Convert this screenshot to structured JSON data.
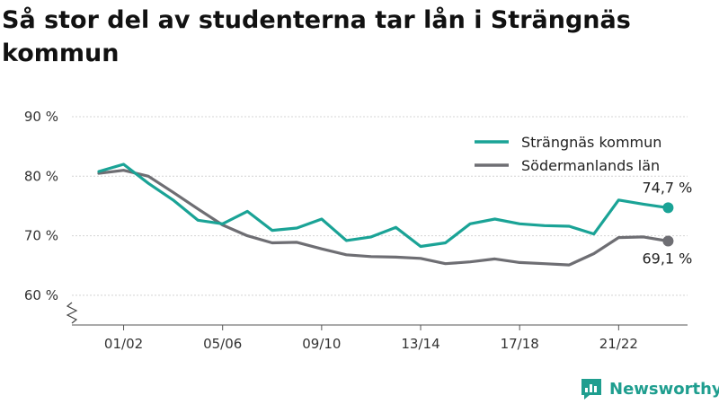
{
  "title": "Så stor del av studenterna tar lån i Strängnäs kommun",
  "brand": {
    "name": "Newsworthy",
    "icon": "newsworthy-logo-icon",
    "color": "#1f9e8f"
  },
  "chart_data": {
    "type": "line",
    "title": "Så stor del av studenterna tar lån i Strängnäs kommun",
    "x": [
      "00/01",
      "01/02",
      "02/03",
      "03/04",
      "04/05",
      "05/06",
      "06/07",
      "07/08",
      "08/09",
      "09/10",
      "10/11",
      "11/12",
      "12/13",
      "13/14",
      "14/15",
      "15/16",
      "16/17",
      "17/18",
      "18/19",
      "19/20",
      "20/21",
      "21/22",
      "22/23",
      "23/24"
    ],
    "x_tick_labels": [
      "01/02",
      "05/06",
      "09/10",
      "13/14",
      "17/18",
      "21/22"
    ],
    "ylim": [
      55,
      90
    ],
    "y_ticks": [
      {
        "value": 60,
        "label": "60 %"
      },
      {
        "value": 70,
        "label": "70 %"
      },
      {
        "value": 80,
        "label": "80 %"
      },
      {
        "value": 90,
        "label": "90 %"
      }
    ],
    "axis_break": true,
    "grid": true,
    "legend_position": "top-right",
    "series": [
      {
        "name": "Strängnäs kommun",
        "color": "#1aa396",
        "values": [
          80.8,
          82.0,
          78.8,
          76.0,
          72.6,
          72.0,
          74.1,
          70.9,
          71.3,
          72.8,
          69.2,
          69.8,
          71.4,
          68.2,
          68.8,
          72.0,
          72.8,
          72.0,
          71.7,
          71.6,
          70.3,
          76.0,
          75.3,
          74.7
        ],
        "end_label": "74,7 %"
      },
      {
        "name": "Södermanlands län",
        "color": "#6e6e73",
        "values": [
          80.5,
          81.0,
          80.0,
          77.3,
          74.5,
          71.8,
          70.0,
          68.8,
          68.9,
          67.8,
          66.8,
          66.5,
          66.4,
          66.2,
          65.3,
          65.6,
          66.1,
          65.5,
          65.3,
          65.1,
          67.0,
          69.7,
          69.8,
          69.1
        ],
        "end_label": "69,1 %"
      }
    ]
  }
}
